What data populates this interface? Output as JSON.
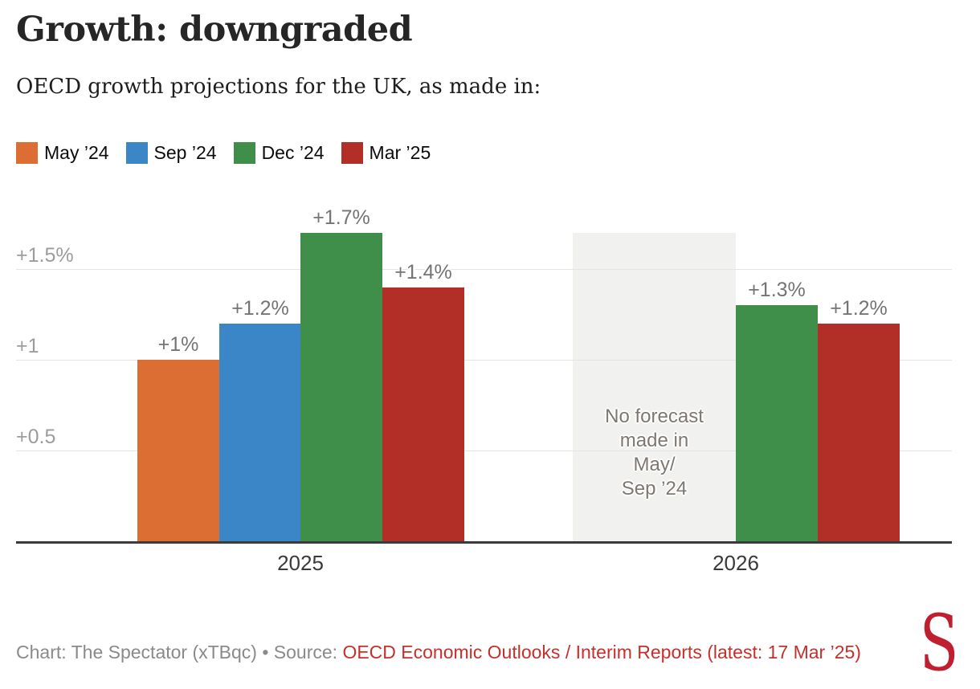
{
  "header": {
    "title": "Growth: downgraded",
    "subtitle": "OECD growth projections for the UK, as made in:"
  },
  "chart_data": {
    "type": "bar",
    "title": "Growth: downgraded",
    "subtitle": "OECD growth projections for the UK, as made in:",
    "unit": "%",
    "categories": [
      "2025",
      "2026"
    ],
    "series": [
      {
        "name": "May ’24",
        "color": "#dc6e33",
        "values": [
          1.0,
          null
        ],
        "labels": [
          "+1%",
          null
        ]
      },
      {
        "name": "Sep ’24",
        "color": "#3a86c6",
        "values": [
          1.2,
          null
        ],
        "labels": [
          "+1.2%",
          null
        ]
      },
      {
        "name": "Dec ’24",
        "color": "#3f8f4a",
        "values": [
          1.7,
          1.3
        ],
        "labels": [
          "+1.7%",
          "+1.3%"
        ]
      },
      {
        "name": "Mar ’25",
        "color": "#b12f26",
        "values": [
          1.4,
          1.2
        ],
        "labels": [
          "+1.4%",
          "+1.2%"
        ]
      }
    ],
    "no_forecast": {
      "category": "2026",
      "series_covered": [
        "May ’24",
        "Sep ’24"
      ],
      "text_lines": [
        "No forecast",
        "made in",
        "May/",
        "Sep ’24"
      ],
      "box_top_value": 1.7
    },
    "yticks": [
      {
        "value": 0.5,
        "label": "+0.5"
      },
      {
        "value": 1.0,
        "label": "+1"
      },
      {
        "value": 1.5,
        "label": "+1.5%"
      }
    ],
    "ylim": [
      0,
      1.88
    ],
    "grid": true,
    "legend_position": "top-left"
  },
  "footer": {
    "credit": "Chart: The Spectator (xTBqc) • Source: ",
    "source": "OECD Economic Outlooks / Interim Reports (latest: 17 Mar ’25)",
    "logo": "S"
  },
  "colors": {
    "logo_red": "#c01f30",
    "source_red": "#c6302c",
    "credit_gray": "#8a8a8a",
    "no_forecast_box": "#f1f1ef",
    "no_forecast_text": "#7e7870",
    "gridline": "#e4e4e4",
    "axis_baseline": "#3b3b3b",
    "tick_label": "#9c9c9c",
    "value_label": "#747474",
    "category_label": "#3a3a3a"
  }
}
